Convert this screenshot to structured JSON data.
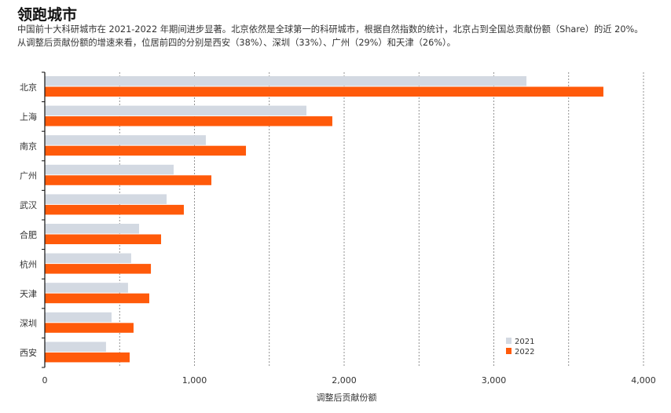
{
  "header": {
    "title": "领跑城市",
    "description_line1": "中国前十大科研城市在 2021-2022 年期间进步显著。北京依然是全球第一的科研城市，根据自然指数的统计，北京占到全国总贡献份额（Share）的近 20%。",
    "description_line2": "从调整后贡献份额的增速来看，位居前四的分别是西安（38%）、深圳（33%）、广州（29%）和天津（26%）。"
  },
  "chart_data": {
    "type": "bar",
    "orientation": "horizontal",
    "categories": [
      "北京",
      "上海",
      "南京",
      "广州",
      "武汉",
      "合肥",
      "杭州",
      "天津",
      "深圳",
      "西安"
    ],
    "series": [
      {
        "name": "2021",
        "color": "#d3d9e2",
        "values": [
          3218,
          1748,
          1076,
          861,
          814,
          630,
          577,
          556,
          446,
          409
        ]
      },
      {
        "name": "2022",
        "color": "#ff5a0a",
        "values": [
          3732,
          1921,
          1344,
          1113,
          929,
          777,
          709,
          698,
          593,
          567
        ]
      }
    ],
    "xlabel": "调整后贡献份额",
    "ylabel": "",
    "xlim": [
      0,
      4000
    ],
    "xticks": [
      "0",
      "1,000",
      "2,000",
      "3,000",
      "4,000"
    ],
    "xtick_values": [
      0,
      1000,
      2000,
      3000,
      4000
    ],
    "grid": "vertical dotted every 500",
    "legend": "bottom-right"
  }
}
